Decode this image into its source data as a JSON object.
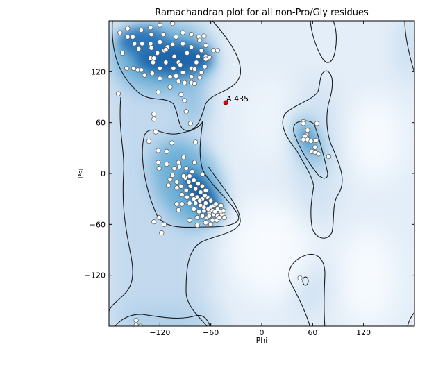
{
  "chart_data": {
    "type": "scatter",
    "title": "Ramachandran plot for all non-Pro/Gly residues",
    "xlabel": "Phi",
    "ylabel": "Psi",
    "xlim": [
      -180,
      180
    ],
    "ylim": [
      -180,
      180
    ],
    "xticks": [
      -120,
      -60,
      0,
      60,
      120
    ],
    "yticks": [
      -120,
      -60,
      0,
      60,
      120
    ],
    "xtick_labels": [
      "−120",
      "−60",
      "0",
      "60",
      "120"
    ],
    "ytick_labels": [
      "−120",
      "−60",
      "0",
      "60",
      "120"
    ],
    "grid": false,
    "background": "density heatmap (Blues) with contour lines",
    "colors": {
      "density_high": "#08519c",
      "density_low": "#f2f7fd",
      "points": "#ffffff",
      "outlier": "#e00000",
      "contour": "#1a1a1a"
    },
    "points": [
      [
        -167,
        166
      ],
      [
        -158,
        171
      ],
      [
        -158,
        161
      ],
      [
        -152,
        161
      ],
      [
        -142,
        169
      ],
      [
        -131,
        172
      ],
      [
        -130,
        164
      ],
      [
        -120,
        175
      ],
      [
        -105,
        177
      ],
      [
        -116,
        164
      ],
      [
        -101,
        161
      ],
      [
        -93,
        166
      ],
      [
        -83,
        164
      ],
      [
        -74,
        161
      ],
      [
        -68,
        162
      ],
      [
        -73,
        157
      ],
      [
        -66,
        151
      ],
      [
        -57,
        145
      ],
      [
        -52,
        145
      ],
      [
        -150,
        153
      ],
      [
        -141,
        153
      ],
      [
        -131,
        153
      ],
      [
        -145,
        147
      ],
      [
        -164,
        142
      ],
      [
        -130,
        148
      ],
      [
        -120,
        155
      ],
      [
        -105,
        152
      ],
      [
        -123,
        142
      ],
      [
        -131,
        136
      ],
      [
        -127,
        136
      ],
      [
        -115,
        145
      ],
      [
        -111,
        149
      ],
      [
        -103,
        138
      ],
      [
        -93,
        153
      ],
      [
        -83,
        149
      ],
      [
        -71,
        145
      ],
      [
        -75,
        138
      ],
      [
        -66,
        138
      ],
      [
        -62,
        137
      ],
      [
        -88,
        142
      ],
      [
        -77,
        131
      ],
      [
        -66,
        135
      ],
      [
        -128,
        131
      ],
      [
        -120,
        124
      ],
      [
        -113,
        131
      ],
      [
        -104,
        124
      ],
      [
        -98,
        131
      ],
      [
        -96,
        128
      ],
      [
        -83,
        124
      ],
      [
        -79,
        123
      ],
      [
        -67,
        126
      ],
      [
        -159,
        124
      ],
      [
        -151,
        124
      ],
      [
        -146,
        122
      ],
      [
        -142,
        122
      ],
      [
        -138,
        116
      ],
      [
        -129,
        118
      ],
      [
        -120,
        112
      ],
      [
        -108,
        114
      ],
      [
        -101,
        115
      ],
      [
        -93,
        119
      ],
      [
        -83,
        114
      ],
      [
        -73,
        113
      ],
      [
        -71,
        119
      ],
      [
        -98,
        109
      ],
      [
        -91,
        107
      ],
      [
        -83,
        107
      ],
      [
        -79,
        106
      ],
      [
        -108,
        102
      ],
      [
        -122,
        96
      ],
      [
        -95,
        93
      ],
      [
        -91,
        86
      ],
      [
        -89,
        73
      ],
      [
        -84,
        59
      ],
      [
        -127,
        70
      ],
      [
        -127,
        64
      ],
      [
        -169,
        94
      ],
      [
        -113,
        146
      ],
      [
        -125,
        49
      ],
      [
        -133,
        38
      ],
      [
        -106,
        36
      ],
      [
        -78,
        37
      ],
      [
        -122,
        27
      ],
      [
        -112,
        26
      ],
      [
        -92,
        19
      ],
      [
        -122,
        13
      ],
      [
        -112,
        11
      ],
      [
        -98,
        13
      ],
      [
        -79,
        13
      ],
      [
        -121,
        6
      ],
      [
        -103,
        6
      ],
      [
        -89,
        6
      ],
      [
        -82,
        2
      ],
      [
        -70,
        -1
      ],
      [
        -108,
        -7
      ],
      [
        -110,
        -14
      ],
      [
        -100,
        -17
      ],
      [
        -89,
        -20
      ],
      [
        -100,
        -36
      ],
      [
        -94,
        -36
      ],
      [
        -98,
        -43
      ],
      [
        -121,
        -52
      ],
      [
        -127,
        -57
      ],
      [
        -115,
        -60
      ],
      [
        -118,
        -70
      ],
      [
        -85,
        -55
      ],
      [
        -76,
        -61
      ],
      [
        -90,
        -5
      ],
      [
        -86,
        -10
      ],
      [
        -80,
        -8
      ],
      [
        -75,
        -12
      ],
      [
        -84,
        -15
      ],
      [
        -78,
        -18
      ],
      [
        -70,
        -15
      ],
      [
        -72,
        -22
      ],
      [
        -66,
        -20
      ],
      [
        -94,
        -25
      ],
      [
        -88,
        -28
      ],
      [
        -82,
        -25
      ],
      [
        -76,
        -28
      ],
      [
        -70,
        -30
      ],
      [
        -64,
        -28
      ],
      [
        -60,
        -32
      ],
      [
        -85,
        -35
      ],
      [
        -78,
        -35
      ],
      [
        -72,
        -38
      ],
      [
        -66,
        -35
      ],
      [
        -60,
        -40
      ],
      [
        -56,
        -38
      ],
      [
        -52,
        -42
      ],
      [
        -80,
        -42
      ],
      [
        -74,
        -45
      ],
      [
        -68,
        -44
      ],
      [
        -62,
        -46
      ],
      [
        -57,
        -48
      ],
      [
        -52,
        -50
      ],
      [
        -47,
        -48
      ],
      [
        -44,
        -52
      ],
      [
        -70,
        -50
      ],
      [
        -64,
        -52
      ],
      [
        -58,
        -55
      ],
      [
        -53,
        -55
      ],
      [
        -48,
        -45
      ],
      [
        -45,
        -44
      ],
      [
        -66,
        -58
      ],
      [
        -60,
        -60
      ],
      [
        -76,
        -52
      ],
      [
        -68,
        -40
      ],
      [
        -63,
        -42
      ],
      [
        -73,
        -32
      ],
      [
        -67,
        -26
      ],
      [
        -58,
        -44
      ],
      [
        -54,
        -36
      ],
      [
        -62,
        -50
      ],
      [
        -55,
        -45
      ],
      [
        -50,
        -52
      ],
      [
        -48,
        -38
      ],
      [
        -80,
        -30
      ],
      [
        -95,
        -15
      ],
      [
        -92,
        -3
      ],
      [
        -97,
        8
      ],
      [
        -85,
        -3
      ],
      [
        -105,
        -2
      ],
      [
        -100,
        -10
      ],
      [
        49,
        61
      ],
      [
        49,
        59
      ],
      [
        65,
        59
      ],
      [
        54,
        51
      ],
      [
        53,
        45
      ],
      [
        51,
        44
      ],
      [
        49,
        40
      ],
      [
        54,
        40
      ],
      [
        58,
        38
      ],
      [
        64,
        39
      ],
      [
        63,
        31
      ],
      [
        59,
        26
      ],
      [
        63,
        25
      ],
      [
        67,
        23
      ],
      [
        79,
        20
      ],
      [
        45,
        -123
      ],
      [
        -148,
        -173
      ],
      [
        -148,
        -179
      ],
      [
        -143,
        -180
      ]
    ],
    "outliers": [
      {
        "label": "A 435",
        "phi": -42.5,
        "psi": 83.5
      }
    ]
  }
}
